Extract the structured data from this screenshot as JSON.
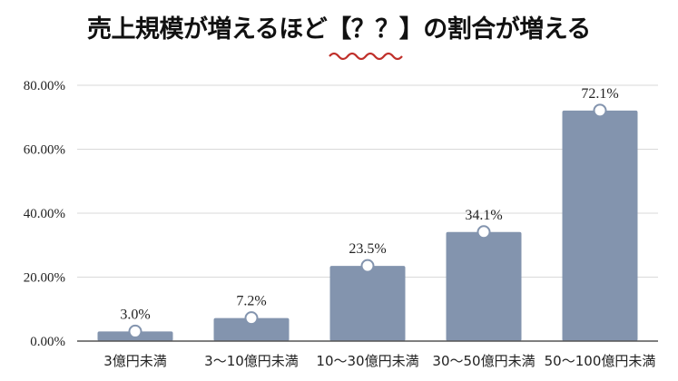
{
  "chart_data": {
    "type": "bar",
    "title": "売上規模が増えるほど【？？】の割合が増える",
    "categories": [
      "3億円未満",
      "3〜10億円未満",
      "10〜30億円未満",
      "30〜50億円未満",
      "50〜100億円未満"
    ],
    "values": [
      3.0,
      7.2,
      23.5,
      34.1,
      72.1
    ],
    "data_labels": [
      "3.0%",
      "7.2%",
      "23.5%",
      "34.1%",
      "72.1%"
    ],
    "yticks": [
      "0.00%",
      "20.00%",
      "40.00%",
      "60.00%",
      "80.00%"
    ],
    "ylim": [
      0,
      80
    ],
    "grid": true,
    "xlabel": "",
    "ylabel": "",
    "colors": {
      "bar": "#8394ae",
      "underline": "#c0302b",
      "grid": "#d9d9d9"
    }
  }
}
